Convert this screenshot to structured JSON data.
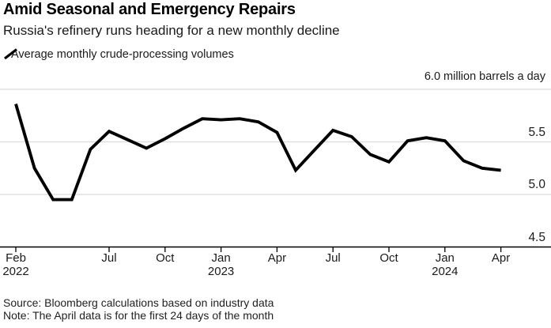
{
  "header": {
    "title": "Amid Seasonal and Emergency Repairs",
    "subtitle": "Russia's refinery runs heading for a new monthly decline"
  },
  "legend": {
    "marker": "diagonal-line-stroke",
    "label": "Average monthly crude-processing volumes"
  },
  "chart_data": {
    "type": "line",
    "title": "Amid Seasonal and Emergency Repairs",
    "subtitle": "Russia's refinery runs heading for a new monthly decline",
    "unit_label": "6.0 million barrels a day",
    "x": [
      "Feb 2022",
      "Mar 2022",
      "Apr 2022",
      "May 2022",
      "Jun 2022",
      "Jul 2022",
      "Aug 2022",
      "Sep 2022",
      "Oct 2022",
      "Nov 2022",
      "Dec 2022",
      "Jan 2023",
      "Feb 2023",
      "Mar 2023",
      "Apr 2023",
      "May 2023",
      "Jun 2023",
      "Jul 2023",
      "Aug 2023",
      "Sep 2023",
      "Oct 2023",
      "Nov 2023",
      "Dec 2023",
      "Jan 2024",
      "Feb 2024",
      "Mar 2024",
      "Apr 2024"
    ],
    "series": [
      {
        "name": "Average monthly crude-processing volumes",
        "color": "#000000",
        "values": [
          5.86,
          5.25,
          4.95,
          4.95,
          5.43,
          5.6,
          5.52,
          5.44,
          5.53,
          5.63,
          5.72,
          5.71,
          5.72,
          5.69,
          5.59,
          5.23,
          5.42,
          5.61,
          5.55,
          5.38,
          5.31,
          5.51,
          5.54,
          5.51,
          5.32,
          5.25,
          5.23
        ]
      }
    ],
    "ylim": [
      4.5,
      6.0
    ],
    "grid": "horizontal",
    "legend_position": "top-left",
    "yticks": [
      {
        "value": 6.0,
        "label": ""
      },
      {
        "value": 5.5,
        "label": "5.5"
      },
      {
        "value": 5.0,
        "label": "5.0"
      },
      {
        "value": 4.5,
        "label": "4.5"
      }
    ],
    "xticks": [
      {
        "index": 0,
        "label": "Feb",
        "year": "2022"
      },
      {
        "index": 5,
        "label": "Jul",
        "year": ""
      },
      {
        "index": 8,
        "label": "Oct",
        "year": ""
      },
      {
        "index": 11,
        "label": "Jan",
        "year": "2023"
      },
      {
        "index": 14,
        "label": "Apr",
        "year": ""
      },
      {
        "index": 17,
        "label": "Jul",
        "year": ""
      },
      {
        "index": 20,
        "label": "Oct",
        "year": ""
      },
      {
        "index": 23,
        "label": "Jan",
        "year": "2024"
      },
      {
        "index": 26,
        "label": "Apr",
        "year": ""
      }
    ]
  },
  "footer": {
    "source": "Source: Bloomberg calculations based on industry data",
    "note": "Note: The April data is for the first 24 days of the month"
  },
  "colors": {
    "line": "#000000",
    "gridline": "#dbdbdb",
    "axis": "#000000",
    "background": "#ffffff"
  }
}
